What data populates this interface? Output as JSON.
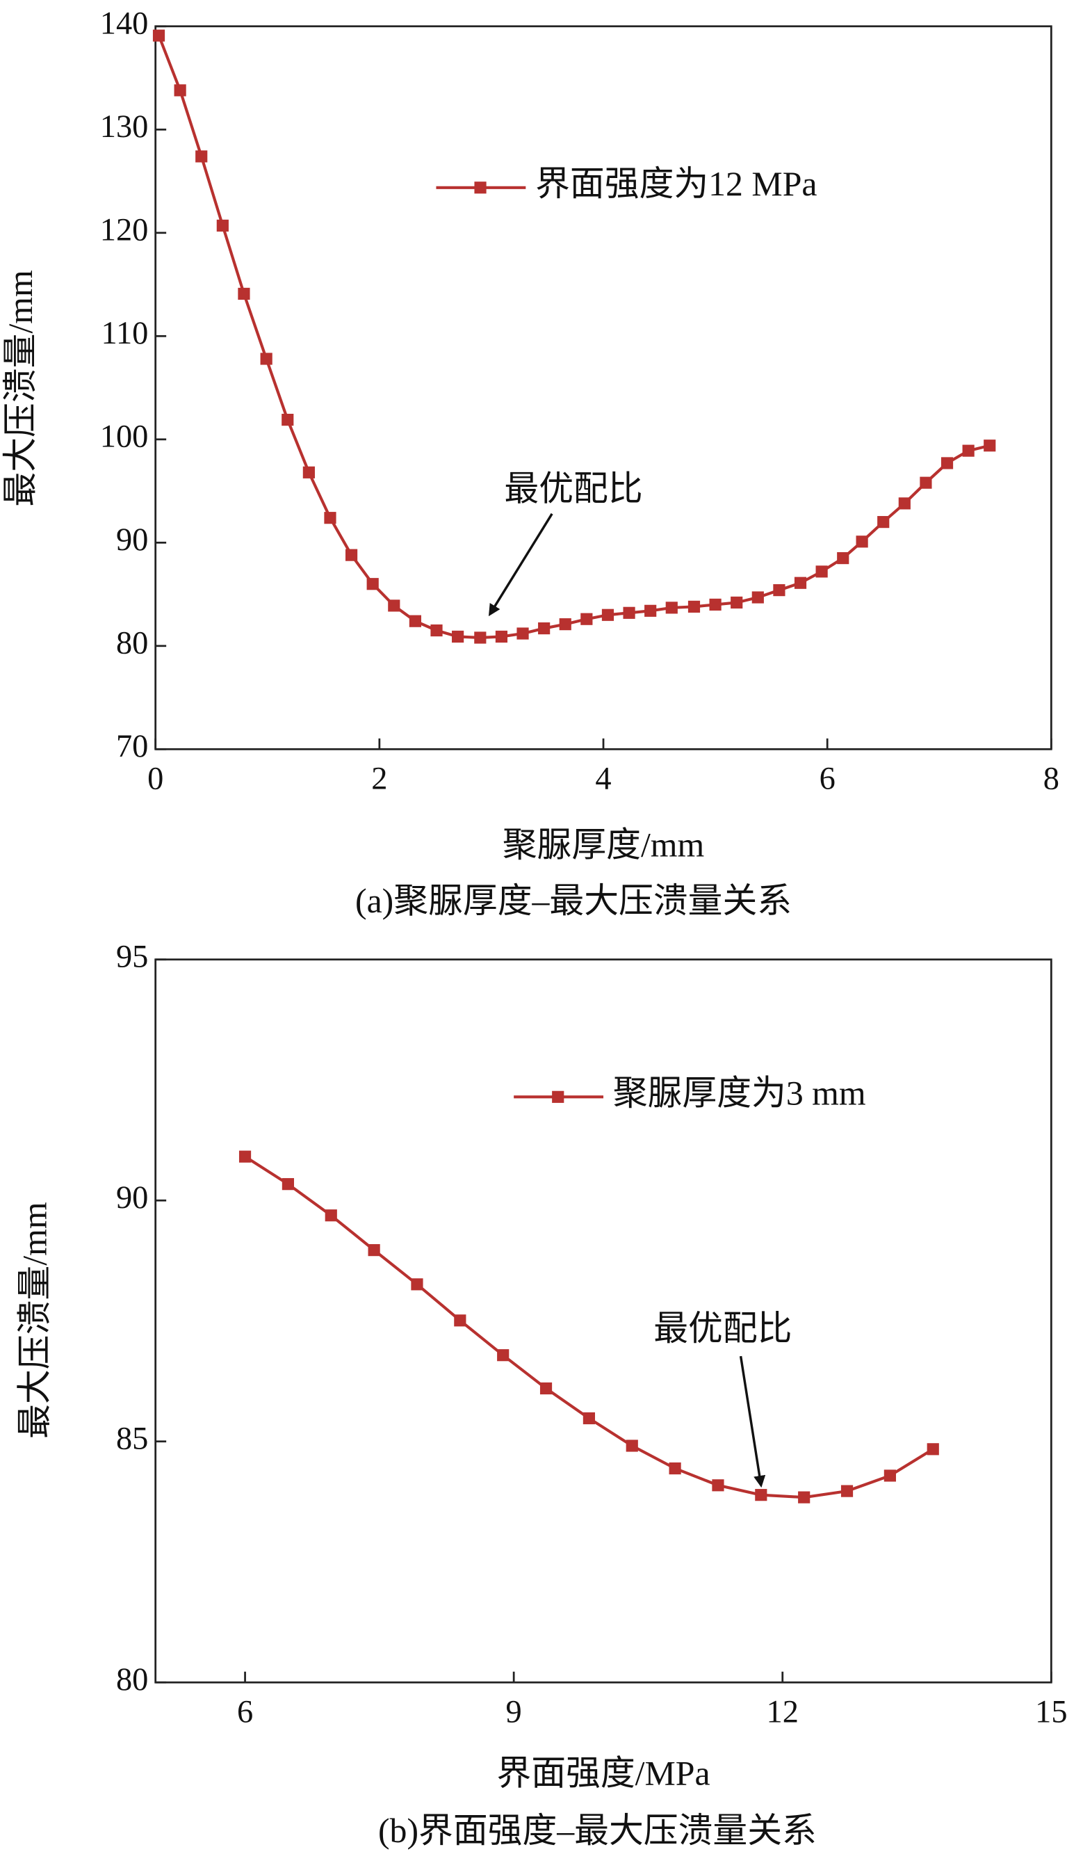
{
  "chart_data": [
    {
      "type": "line",
      "caption": "(a)聚脲厚度–最大压溃量关系",
      "xlabel": "聚脲厚度/mm",
      "ylabel": "最大压溃量/mm",
      "annotation": "最优配比",
      "xlim": [
        0,
        8
      ],
      "xticks": [
        0,
        2,
        4,
        6,
        8
      ],
      "ylim": [
        70,
        140
      ],
      "yticks": [
        70,
        80,
        90,
        100,
        110,
        120,
        130,
        140
      ],
      "x": [
        0.03,
        0.22,
        0.41,
        0.6,
        0.79,
        0.99,
        1.18,
        1.37,
        1.56,
        1.75,
        1.94,
        2.13,
        2.32,
        2.51,
        2.7,
        2.9,
        3.09,
        3.28,
        3.47,
        3.66,
        3.85,
        4.04,
        4.23,
        4.42,
        4.61,
        4.81,
        5.0,
        5.19,
        5.38,
        5.57,
        5.76,
        5.95,
        6.14,
        6.31,
        6.5,
        6.69,
        6.88,
        7.07,
        7.26,
        7.45
      ],
      "series": [
        {
          "name": "界面强度为12 MPa",
          "color": "#b8312f",
          "values": [
            139.1,
            133.8,
            127.4,
            120.7,
            114.1,
            107.8,
            101.9,
            96.8,
            92.4,
            88.8,
            86.0,
            83.9,
            82.4,
            81.5,
            80.9,
            80.8,
            80.9,
            81.2,
            81.7,
            82.1,
            82.6,
            83.0,
            83.2,
            83.4,
            83.7,
            83.8,
            84.0,
            84.2,
            84.7,
            85.4,
            86.1,
            87.2,
            88.5,
            90.1,
            92.0,
            93.8,
            95.8,
            97.7,
            98.9,
            99.4
          ]
        }
      ]
    },
    {
      "type": "line",
      "caption": "(b)界面强度–最大压溃量关系",
      "xlabel": "界面强度/MPa",
      "ylabel": "最大压溃量/mm",
      "annotation": "最优配比",
      "xlim": [
        5,
        15
      ],
      "xticks": [
        6,
        9,
        12,
        15
      ],
      "ylim": [
        80,
        95
      ],
      "yticks": [
        80,
        85,
        90,
        95
      ],
      "x": [
        6.0,
        6.48,
        6.96,
        7.44,
        7.92,
        8.4,
        8.88,
        9.36,
        9.84,
        10.32,
        10.8,
        11.28,
        11.76,
        12.24,
        12.72,
        13.2,
        13.68
      ],
      "series": [
        {
          "name": "聚脲厚度为3 mm",
          "color": "#b8312f",
          "values": [
            90.91,
            90.34,
            89.69,
            88.97,
            88.26,
            87.51,
            86.79,
            86.1,
            85.48,
            84.91,
            84.44,
            84.09,
            83.89,
            83.84,
            83.97,
            84.29,
            84.84
          ]
        }
      ]
    }
  ]
}
